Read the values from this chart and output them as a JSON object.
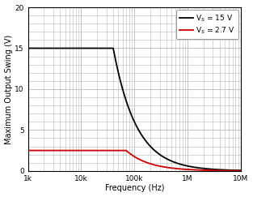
{
  "title": "",
  "xlabel": "Frequency (Hz)",
  "ylabel": "Maximum Output Swing (V)",
  "xlim_log": [
    3,
    7
  ],
  "ylim": [
    0,
    20
  ],
  "yticks": [
    0,
    5,
    10,
    15,
    20
  ],
  "xtick_labels": [
    "1k",
    "10k",
    "100k",
    "1M",
    "10M"
  ],
  "xtick_values": [
    1000,
    10000,
    100000,
    1000000,
    10000000
  ],
  "line1_color": "#000000",
  "line2_color": "#cc0000",
  "line1_label": "V$_S$ = 15 V",
  "line2_label": "V$_S$ = 2.7 V",
  "line1_slew": 3769911,
  "line2_slew": 1099557,
  "line1_vmax": 15.0,
  "line2_vmax": 2.5,
  "background_color": "#ffffff",
  "grid_color": "#b8b8b8",
  "legend_fontsize": 6.5,
  "axis_fontsize": 7,
  "tick_fontsize": 6.5,
  "linewidth": 1.3
}
